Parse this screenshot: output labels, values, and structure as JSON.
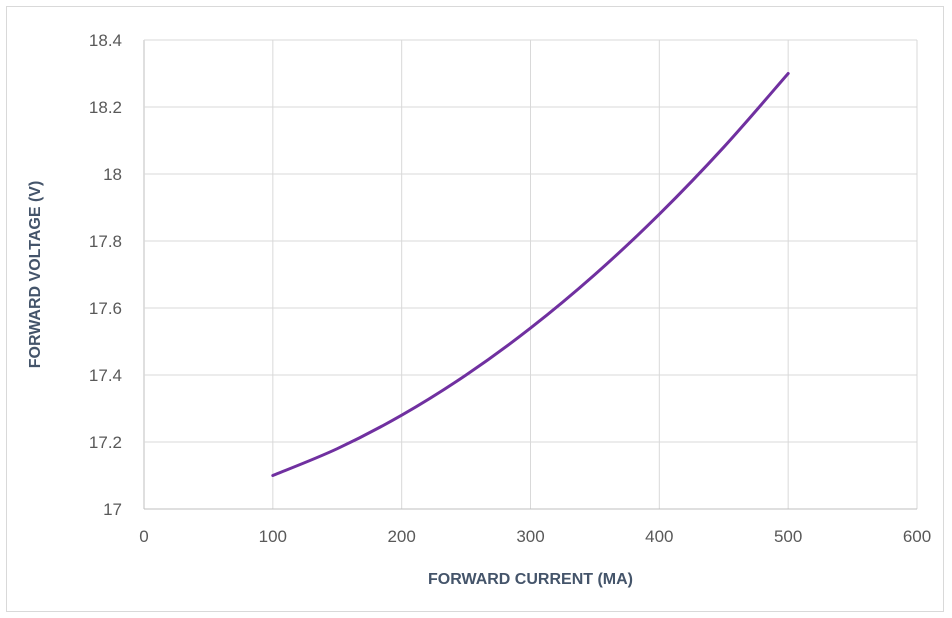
{
  "chart_data": {
    "type": "line",
    "title": "",
    "xlabel": "FORWARD CURRENT (MA)",
    "ylabel": "FORWARD VOLTAGE (V)",
    "xlim": [
      0,
      600
    ],
    "ylim": [
      17,
      18.4
    ],
    "x_ticks": [
      "0",
      "100",
      "200",
      "300",
      "400",
      "500",
      "600"
    ],
    "y_ticks": [
      "17",
      "17.2",
      "17.4",
      "17.6",
      "17.8",
      "18",
      "18.2",
      "18.4"
    ],
    "grid": true,
    "legend": "none",
    "series": [
      {
        "color": "#7030a0",
        "x": [
          100,
          150,
          200,
          250,
          300,
          350,
          400,
          450,
          500
        ],
        "y": [
          17.1,
          17.18,
          17.28,
          17.4,
          17.54,
          17.7,
          17.88,
          18.08,
          18.3
        ]
      }
    ]
  }
}
